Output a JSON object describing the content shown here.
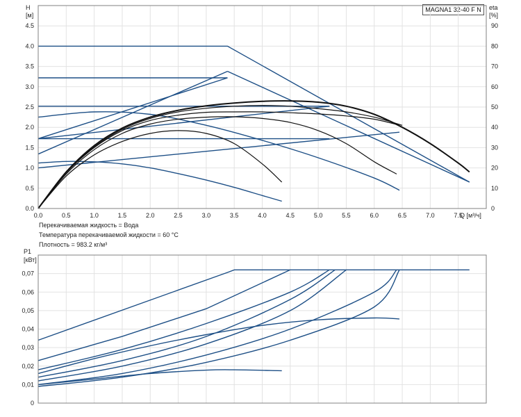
{
  "chart_data": [
    {
      "type": "line",
      "model": "MAGNA1 32-40 F N",
      "ylabel": "H",
      "ylabel_unit": "[м]",
      "y2label": "eta",
      "y2label_unit": "[%]",
      "xlabel": "Q [м³/ч]",
      "xlim": [
        0,
        8
      ],
      "ylim": [
        0,
        5
      ],
      "y2lim": [
        0,
        100
      ],
      "xticks": [
        "0.0",
        "0.5",
        "1.0",
        "1.5",
        "2.0",
        "2.5",
        "3.0",
        "3.5",
        "4.0",
        "4.5",
        "5.0",
        "5.5",
        "6.0",
        "6.5",
        "7.0",
        "7.5"
      ],
      "yticks": [
        "0.0",
        "0.5",
        "1.0",
        "1.5",
        "2.0",
        "2.5",
        "3.0",
        "3.5",
        "4.0",
        "4.5"
      ],
      "y2ticks": [
        "0",
        "10",
        "20",
        "30",
        "40",
        "50",
        "60",
        "70",
        "80",
        "90"
      ],
      "grid": true,
      "series": [
        {
          "color": "blue",
          "x": [
            0,
            3.38,
            7.7
          ],
          "y": [
            4.0,
            4.0,
            0.65
          ]
        },
        {
          "color": "blue",
          "x": [
            0,
            3.38
          ],
          "y": [
            3.22,
            3.22
          ]
        },
        {
          "color": "blue",
          "x": [
            0,
            5.2
          ],
          "y": [
            2.52,
            2.52
          ]
        },
        {
          "color": "blue",
          "x": [
            0,
            5.2
          ],
          "y": [
            1.72,
            1.72
          ]
        },
        {
          "color": "blue",
          "x": [
            0,
            3.38
          ],
          "y": [
            1.34,
            3.38
          ]
        },
        {
          "color": "blue",
          "x": [
            0,
            3.38
          ],
          "y": [
            1.72,
            3.22
          ]
        },
        {
          "color": "blue",
          "x": [
            0,
            5.2
          ],
          "y": [
            1.72,
            2.52
          ]
        },
        {
          "color": "blue",
          "x": [
            0,
            6.45
          ],
          "y": [
            1.0,
            1.88
          ]
        },
        {
          "color": "blue",
          "x": [
            3.38,
            7.7
          ],
          "y": [
            3.38,
            0.65
          ]
        },
        {
          "color": "blue",
          "x": [
            0,
            1.0,
            2.0,
            3.0,
            4.0,
            5.0,
            6.0,
            6.45
          ],
          "y": [
            2.25,
            2.38,
            2.32,
            2.05,
            1.68,
            1.25,
            0.75,
            0.45
          ]
        },
        {
          "color": "blue",
          "x": [
            0,
            0.5,
            1.0,
            1.5,
            2.0,
            2.5,
            3.0,
            3.5,
            4.0,
            4.35
          ],
          "y": [
            1.12,
            1.16,
            1.15,
            1.1,
            1.0,
            0.86,
            0.7,
            0.52,
            0.32,
            0.18
          ]
        },
        {
          "color": "black",
          "x": [
            0,
            0.5,
            1.0,
            1.5,
            2.0,
            2.5,
            3.0,
            3.5,
            4.0,
            4.5,
            5.0,
            5.5,
            6.0,
            6.5,
            7.0,
            7.5,
            7.7
          ],
          "y": [
            0,
            0.9,
            1.55,
            1.98,
            2.25,
            2.42,
            2.53,
            2.6,
            2.64,
            2.65,
            2.62,
            2.52,
            2.32,
            2.0,
            1.6,
            1.12,
            0.9
          ]
        },
        {
          "color": "black",
          "x": [
            0,
            0.5,
            1.0,
            1.5,
            2.0,
            2.5,
            3.0,
            3.5,
            4.0,
            4.5,
            5.0,
            5.5,
            6.0,
            6.4
          ],
          "y": [
            0,
            0.85,
            1.45,
            1.85,
            2.08,
            2.2,
            2.25,
            2.26,
            2.22,
            2.12,
            1.92,
            1.6,
            1.15,
            0.85
          ]
        },
        {
          "color": "black",
          "x": [
            0,
            0.5,
            1.0,
            1.5,
            2.0,
            2.5,
            3.0,
            3.5,
            4.0,
            4.35
          ],
          "y": [
            0,
            0.8,
            1.32,
            1.65,
            1.85,
            1.92,
            1.85,
            1.6,
            1.1,
            0.65
          ]
        },
        {
          "color": "black",
          "x": [
            0,
            0.5,
            1.0,
            1.5,
            2.0,
            2.5,
            3.0,
            3.5,
            4.0,
            4.5,
            5.0,
            5.5,
            6.0,
            6.4
          ],
          "y": [
            0,
            0.88,
            1.5,
            1.92,
            2.17,
            2.3,
            2.37,
            2.38,
            2.38,
            2.36,
            2.33,
            2.28,
            2.2,
            2.07
          ]
        },
        {
          "color": "black",
          "x": [
            0,
            0.5,
            1.0,
            1.5,
            2.0,
            2.5,
            3.0,
            3.5,
            4.0,
            4.5,
            5.0,
            5.5,
            6.0,
            6.5
          ],
          "y": [
            0,
            0.9,
            1.52,
            1.95,
            2.22,
            2.38,
            2.47,
            2.52,
            2.54,
            2.52,
            2.46,
            2.38,
            2.25,
            2.05
          ]
        }
      ]
    },
    {
      "type": "line",
      "ylabel": "P1",
      "ylabel_unit": "[кВт]",
      "xlim": [
        0,
        8
      ],
      "ylim": [
        0,
        0.08
      ],
      "yticks": [
        "0",
        "0,01",
        "0,02",
        "0,03",
        "0,04",
        "0,05",
        "0,06",
        "0,07"
      ],
      "grid": true,
      "series": [
        {
          "color": "blue",
          "x": [
            0,
            3.38,
            3.5,
            7.7
          ],
          "y": [
            0.034,
            0.0706,
            0.072,
            0.072
          ]
        },
        {
          "color": "blue",
          "x": [
            0,
            1.5,
            3.0,
            4.5
          ],
          "y": [
            0.023,
            0.036,
            0.051,
            0.072
          ]
        },
        {
          "color": "blue",
          "x": [
            0,
            1.5,
            3.0,
            4.5,
            5.2
          ],
          "y": [
            0.018,
            0.029,
            0.043,
            0.06,
            0.072
          ]
        },
        {
          "color": "blue",
          "x": [
            0,
            1.5,
            3.0,
            4.5,
            5.3
          ],
          "y": [
            0.014,
            0.023,
            0.036,
            0.056,
            0.072
          ]
        },
        {
          "color": "blue",
          "x": [
            0,
            1.5,
            3.0,
            4.5,
            5.5
          ],
          "y": [
            0.012,
            0.02,
            0.032,
            0.05,
            0.072
          ]
        },
        {
          "color": "blue",
          "x": [
            0,
            1.5,
            3.0,
            4.5,
            6.0,
            6.4
          ],
          "y": [
            0.01,
            0.016,
            0.026,
            0.04,
            0.06,
            0.072
          ]
        },
        {
          "color": "blue",
          "x": [
            0,
            1.5,
            3.0,
            4.5,
            6.0,
            6.45
          ],
          "y": [
            0.009,
            0.014,
            0.022,
            0.034,
            0.052,
            0.072
          ]
        },
        {
          "color": "blue",
          "x": [
            0,
            1.0,
            2.0,
            3.0,
            4.0,
            5.0,
            6.0,
            6.45
          ],
          "y": [
            0.016,
            0.024,
            0.031,
            0.037,
            0.042,
            0.045,
            0.046,
            0.0455
          ]
        },
        {
          "color": "blue",
          "x": [
            0,
            1.0,
            2.0,
            3.0,
            3.5,
            4.35
          ],
          "y": [
            0.01,
            0.013,
            0.016,
            0.0178,
            0.018,
            0.0175
          ]
        }
      ]
    }
  ],
  "notes": [
    "Перекачиваемая жидкость = Вода",
    "Температура перекачиваемой жидкости = 60 °C",
    "Плотность = 983.2 кг/м³"
  ]
}
